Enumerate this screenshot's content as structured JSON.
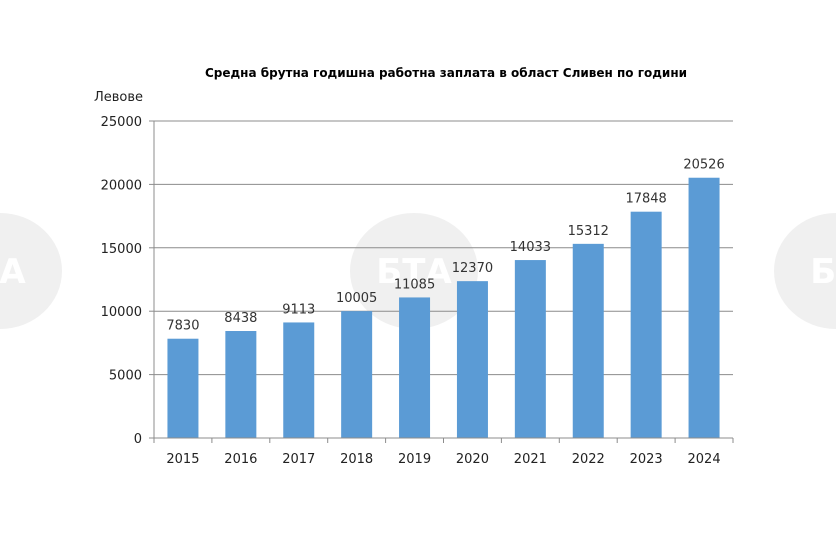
{
  "chart_data": {
    "type": "bar",
    "title": "Средна брутна годишна работна заплата в област Сливен по години",
    "ylabel": "Левове",
    "xlabel": "",
    "categories": [
      "2015",
      "2016",
      "2017",
      "2018",
      "2019",
      "2020",
      "2021",
      "2022",
      "2023",
      "2024"
    ],
    "values": [
      7830,
      8438,
      9113,
      10005,
      11085,
      12370,
      14033,
      15312,
      17848,
      20526
    ],
    "ylim": [
      0,
      25000
    ],
    "yticks": [
      0,
      5000,
      10000,
      15000,
      20000,
      25000
    ],
    "grid": true,
    "legend": "none",
    "bar_color": "#5b9bd5",
    "grid_color": "#8c8c8c"
  },
  "watermark": {
    "label": "БТА",
    "color": "#c8c8c8"
  }
}
